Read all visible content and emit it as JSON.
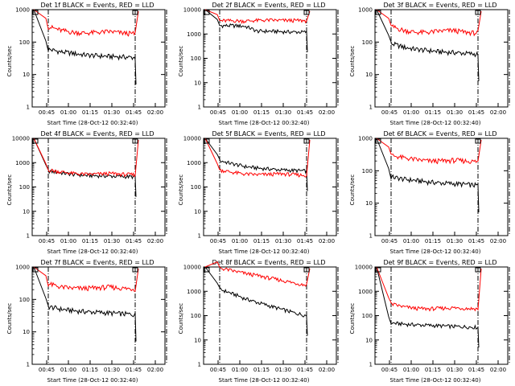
{
  "chart_data": [
    {
      "type": "line",
      "title": "Det 1f BLACK = Events, RED = LLD",
      "xlabel": "Start Time (28-Oct-12 00:32:40)",
      "ylabel": "Counts/sec",
      "x_ticks": [
        "00:45",
        "01:00",
        "01:15",
        "01:30",
        "01:45",
        "02:00"
      ],
      "y_ticks": [
        "1",
        "10",
        "100",
        "1000"
      ],
      "ylim": [
        1,
        1000
      ],
      "y_scale": "log",
      "series": [
        {
          "name": "BLACK = Events",
          "color": "#000000",
          "values": [
            60,
            50,
            45,
            40,
            38,
            36,
            35,
            33
          ]
        },
        {
          "name": "RED = LLD",
          "color": "#ff0000",
          "values": [
            300,
            230,
            200,
            190,
            200,
            210,
            190,
            180
          ]
        }
      ]
    },
    {
      "type": "line",
      "title": "Det 2f BLACK = Events, RED = LLD",
      "xlabel": "Start Time (28-Oct-12 00:32:40)",
      "ylabel": "Counts/sec",
      "x_ticks": [
        "00:45",
        "01:00",
        "01:15",
        "01:30",
        "01:45",
        "02:00"
      ],
      "y_ticks": [
        "1",
        "10",
        "100",
        "1000",
        "10000"
      ],
      "ylim": [
        1,
        10000
      ],
      "y_scale": "log",
      "series": [
        {
          "name": "BLACK = Events",
          "color": "#000000",
          "values": [
            2200,
            2200,
            2100,
            1300,
            1300,
            1250,
            1200,
            1200
          ]
        },
        {
          "name": "RED = LLD",
          "color": "#ff0000",
          "values": [
            3500,
            3500,
            3400,
            3600,
            3700,
            3600,
            3600,
            3500
          ]
        }
      ]
    },
    {
      "type": "line",
      "title": "Det 3f BLACK = Events, RED = LLD",
      "xlabel": "Start Time (28-Oct-12 00:32:40)",
      "ylabel": "Counts/sec",
      "x_ticks": [
        "00:45",
        "01:00",
        "01:15",
        "01:30",
        "01:45",
        "02:00"
      ],
      "y_ticks": [
        "1",
        "10",
        "100",
        "1000"
      ],
      "ylim": [
        1,
        1000
      ],
      "y_scale": "log",
      "series": [
        {
          "name": "BLACK = Events",
          "color": "#000000",
          "values": [
            90,
            70,
            60,
            55,
            50,
            48,
            45,
            42
          ]
        },
        {
          "name": "RED = LLD",
          "color": "#ff0000",
          "values": [
            300,
            230,
            200,
            200,
            220,
            230,
            200,
            190
          ]
        }
      ]
    },
    {
      "type": "line",
      "title": "Det 4f BLACK = Events, RED = LLD",
      "xlabel": "Start Time (28-Oct-12 00:32:40)",
      "ylabel": "Counts/sec",
      "x_ticks": [
        "00:45",
        "01:00",
        "01:15",
        "01:30",
        "01:45",
        "02:00"
      ],
      "y_ticks": [
        "1",
        "10",
        "100",
        "1000",
        "10000"
      ],
      "ylim": [
        1,
        10000
      ],
      "y_scale": "log",
      "series": [
        {
          "name": "BLACK = Events",
          "color": "#000000",
          "values": [
            450,
            380,
            330,
            300,
            290,
            280,
            270,
            260
          ]
        },
        {
          "name": "RED = LLD",
          "color": "#ff0000",
          "values": [
            500,
            420,
            360,
            330,
            340,
            360,
            330,
            320
          ]
        }
      ]
    },
    {
      "type": "line",
      "title": "Det 5f BLACK = Events, RED = LLD",
      "xlabel": "Start Time (28-Oct-12 00:32:40)",
      "ylabel": "Counts/sec",
      "x_ticks": [
        "00:45",
        "01:00",
        "01:15",
        "01:30",
        "01:45",
        "02:00"
      ],
      "y_ticks": [
        "1",
        "10",
        "100",
        "1000",
        "10000"
      ],
      "ylim": [
        1,
        10000
      ],
      "y_scale": "log",
      "series": [
        {
          "name": "BLACK = Events",
          "color": "#000000",
          "values": [
            1200,
            900,
            700,
            600,
            550,
            500,
            480,
            450
          ]
        },
        {
          "name": "RED = LLD",
          "color": "#ff0000",
          "values": [
            500,
            400,
            340,
            320,
            330,
            350,
            320,
            300
          ]
        }
      ]
    },
    {
      "type": "line",
      "title": "Det 6f BLACK = Events, RED = LLD",
      "xlabel": "Start Time (28-Oct-12 00:32:40)",
      "ylabel": "Counts/sec",
      "x_ticks": [
        "00:45",
        "01:00",
        "01:15",
        "01:30",
        "01:45",
        "02:00"
      ],
      "y_ticks": [
        "1",
        "10",
        "100",
        "1000"
      ],
      "ylim": [
        1,
        1000
      ],
      "y_scale": "log",
      "series": [
        {
          "name": "BLACK = Events",
          "color": "#000000",
          "values": [
            65,
            55,
            50,
            45,
            42,
            40,
            38,
            35
          ]
        },
        {
          "name": "RED = LLD",
          "color": "#ff0000",
          "values": [
            300,
            250,
            220,
            200,
            200,
            210,
            200,
            190
          ]
        }
      ]
    },
    {
      "type": "line",
      "title": "Det 7f BLACK = Events, RED = LLD",
      "xlabel": "Start Time (28-Oct-12 00:32:40)",
      "ylabel": "Counts/sec",
      "x_ticks": [
        "00:45",
        "01:00",
        "01:15",
        "01:30",
        "01:45",
        "02:00"
      ],
      "y_ticks": [
        "1",
        "10",
        "100",
        "1000"
      ],
      "ylim": [
        1,
        1000
      ],
      "y_scale": "log",
      "series": [
        {
          "name": "BLACK = Events",
          "color": "#000000",
          "values": [
            60,
            50,
            45,
            42,
            40,
            38,
            36,
            34
          ]
        },
        {
          "name": "RED = LLD",
          "color": "#ff0000",
          "values": [
            300,
            240,
            220,
            220,
            230,
            240,
            220,
            210
          ]
        }
      ]
    },
    {
      "type": "line",
      "title": "Det 8f BLACK = Events, RED = LLD",
      "xlabel": "Start Time (28-Oct-12 00:32:40)",
      "ylabel": "Counts/sec",
      "x_ticks": [
        "00:45",
        "01:00",
        "01:15",
        "01:30",
        "01:45",
        "02:00"
      ],
      "y_ticks": [
        "1",
        "10",
        "100",
        "1000",
        "10000"
      ],
      "ylim": [
        1,
        10000
      ],
      "y_scale": "log",
      "series": [
        {
          "name": "BLACK = Events",
          "color": "#000000",
          "values": [
            1200,
            800,
            500,
            350,
            250,
            180,
            130,
            100
          ]
        },
        {
          "name": "RED = LLD",
          "color": "#ff0000",
          "values": [
            9000,
            7000,
            5500,
            4500,
            3500,
            2800,
            2200,
            1800
          ]
        }
      ]
    },
    {
      "type": "line",
      "title": "Det 9f BLACK = Events, RED = LLD",
      "xlabel": "Start Time (28-Oct-12 00:32:40)",
      "ylabel": "Counts/sec",
      "x_ticks": [
        "00:45",
        "01:00",
        "01:15",
        "01:30",
        "01:45",
        "02:00"
      ],
      "y_ticks": [
        "1",
        "10",
        "100",
        "1000",
        "10000"
      ],
      "ylim": [
        1,
        10000
      ],
      "y_scale": "log",
      "series": [
        {
          "name": "BLACK = Events",
          "color": "#000000",
          "values": [
            50,
            45,
            42,
            40,
            38,
            36,
            35,
            33
          ]
        },
        {
          "name": "RED = LLD",
          "color": "#ff0000",
          "values": [
            300,
            230,
            200,
            190,
            200,
            210,
            200,
            190
          ]
        }
      ]
    }
  ]
}
